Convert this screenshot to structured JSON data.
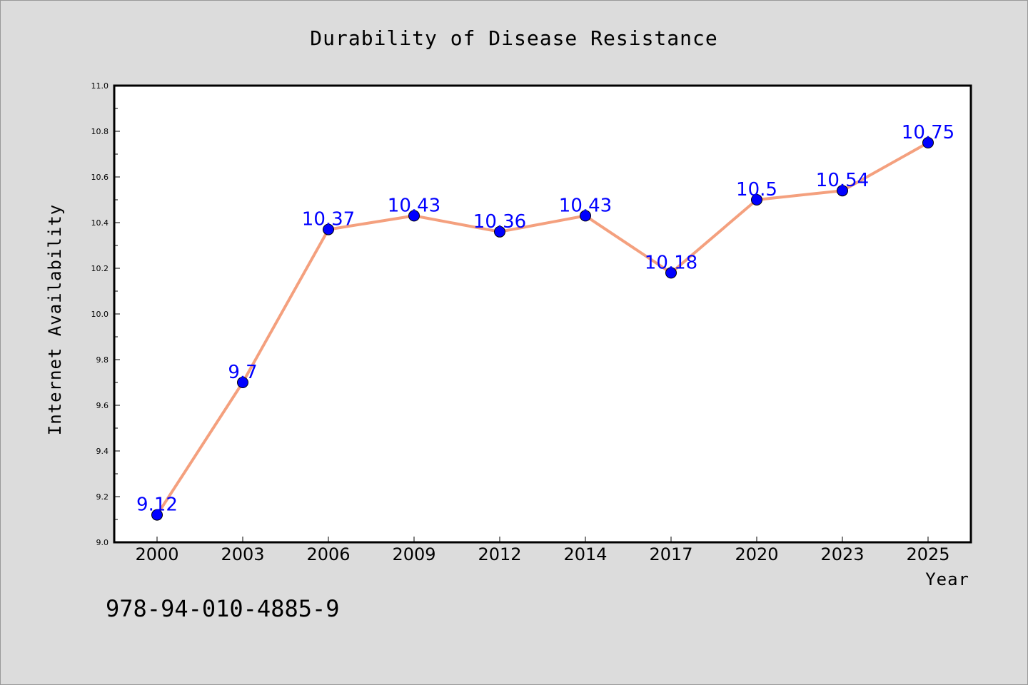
{
  "chart_data": {
    "type": "line",
    "title": "Durability of Disease Resistance",
    "xlabel": "Year",
    "ylabel": "Internet Availability",
    "categories": [
      "2000",
      "2003",
      "2006",
      "2009",
      "2012",
      "2014",
      "2017",
      "2020",
      "2023",
      "2025"
    ],
    "values": [
      9.12,
      9.7,
      10.37,
      10.43,
      10.36,
      10.43,
      10.18,
      10.5,
      10.54,
      10.75
    ],
    "data_labels": [
      "9.12",
      "9.7",
      "10.37",
      "10.43",
      "10.36",
      "10.43",
      "10.18",
      "10.5",
      "10.54",
      "10.75"
    ],
    "ylim": [
      9.0,
      11.0
    ],
    "yticks": [
      9.0,
      9.2,
      9.4,
      9.6,
      9.8,
      10.0,
      10.2,
      10.4,
      10.6,
      10.8,
      11.0
    ],
    "ytick_labels": [
      "9.0",
      "9.2",
      "9.4",
      "9.6",
      "9.8",
      "10.0",
      "10.2",
      "10.4",
      "10.6",
      "10.8",
      "11.0"
    ],
    "grid": false,
    "legend": "none",
    "line_color": "#f4a07e",
    "marker_color": "#0000ff"
  },
  "footnote": "978-94-010-4885-9"
}
